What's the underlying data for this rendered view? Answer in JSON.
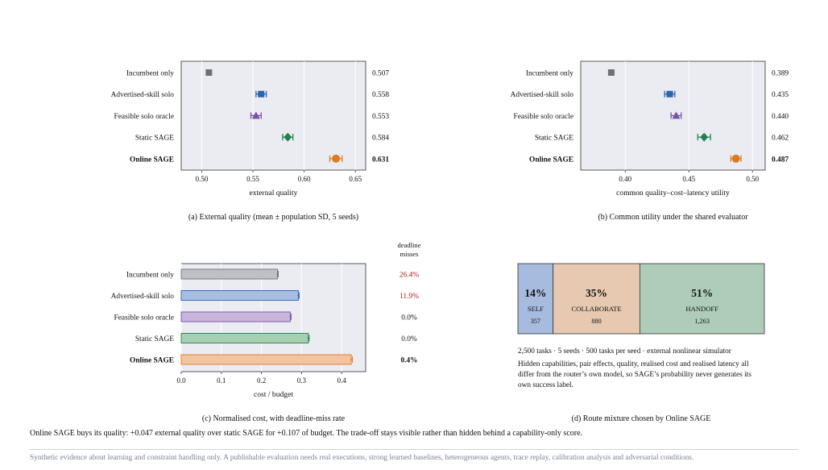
{
  "chart_data": [
    {
      "id": "a",
      "type": "dot",
      "caption": "(a) External quality (mean ± population SD, 5 seeds)",
      "xlabel": "external quality",
      "xlim": [
        0.48,
        0.66
      ],
      "xticks": [
        "0.50",
        "0.55",
        "0.60",
        "0.65"
      ],
      "xtick_values": [
        0.5,
        0.55,
        0.6,
        0.65
      ],
      "categories": [
        "Incumbent only",
        "Advertised-skill solo",
        "Feasible solo oracle",
        "Static SAGE",
        "Online SAGE"
      ],
      "values": [
        0.507,
        0.558,
        0.553,
        0.584,
        0.631
      ],
      "errors": [
        0.002,
        0.005,
        0.005,
        0.005,
        0.006
      ],
      "value_labels": [
        "0.507",
        "0.558",
        "0.553",
        "0.584",
        "0.631"
      ],
      "grid": true
    },
    {
      "id": "b",
      "type": "dot",
      "caption": "(b) Common utility under the shared evaluator",
      "xlabel": "common quality–cost–latency utility",
      "xlim": [
        0.365,
        0.51
      ],
      "xticks": [
        "0.40",
        "0.45",
        "0.50"
      ],
      "xtick_values": [
        0.4,
        0.45,
        0.5
      ],
      "categories": [
        "Incumbent only",
        "Advertised-skill solo",
        "Feasible solo oracle",
        "Static SAGE",
        "Online SAGE"
      ],
      "values": [
        0.389,
        0.435,
        0.44,
        0.462,
        0.487
      ],
      "errors": [
        0.002,
        0.004,
        0.004,
        0.005,
        0.004
      ],
      "value_labels": [
        "0.389",
        "0.435",
        "0.440",
        "0.462",
        "0.487"
      ],
      "grid": true
    },
    {
      "id": "c",
      "type": "bar",
      "orientation": "horizontal",
      "caption": "(c) Normalised cost, with deadline-miss rate",
      "xlabel": "cost / budget",
      "xlim": [
        0,
        0.46
      ],
      "xticks": [
        "0.0",
        "0.1",
        "0.2",
        "0.3",
        "0.4"
      ],
      "xtick_values": [
        0,
        0.1,
        0.2,
        0.3,
        0.4
      ],
      "categories": [
        "Incumbent only",
        "Advertised-skill solo",
        "Feasible solo oracle",
        "Static SAGE",
        "Online SAGE"
      ],
      "values": [
        0.24,
        0.292,
        0.272,
        0.317,
        0.424
      ],
      "errors": [
        0.002,
        0.002,
        0.002,
        0.002,
        0.003
      ],
      "side_header": [
        "deadline",
        "misses"
      ],
      "side_labels": [
        "26.4%",
        "11.9%",
        "0.0%",
        "0.0%",
        "0.4%"
      ],
      "side_label_colors": [
        "#b2221e",
        "#b2221e",
        "#111111",
        "#111111",
        "#111111"
      ],
      "grid": true
    },
    {
      "id": "d",
      "type": "stacked-bar",
      "caption": "(d) Route mixture chosen by Online SAGE",
      "segments": [
        {
          "pct_label": "14%",
          "name": "SELF",
          "count": "357",
          "value": 357
        },
        {
          "pct_label": "35%",
          "name": "COLLABORATE",
          "count": "880",
          "value": 880
        },
        {
          "pct_label": "51%",
          "name": "HANDOFF",
          "count": "1,263",
          "value": 1263
        }
      ]
    }
  ],
  "series_colors": [
    "#6e7078",
    "#2a63ae",
    "#7a52a0",
    "#25804a",
    "#e07a1e"
  ],
  "series_fill_colors": [
    "#bfc0c6",
    "#a7bee2",
    "#c8b5dc",
    "#a6d0b2",
    "#f2c4a2"
  ],
  "segment_colors": [
    "#a7bbdf",
    "#e7c8b0",
    "#aecdb8"
  ],
  "marker_shapes": [
    "square",
    "square",
    "triangle",
    "diamond",
    "circle"
  ],
  "bold_category": "Online SAGE",
  "notes": {
    "line1": "2,500 tasks · 5 seeds · 500 tasks per seed · external nonlinear simulator",
    "line2": "Hidden capabilities, pair effects, quality, realised cost and realised latency all differ from the router’s own model, so SAGE’s probability never generates its own success label."
  },
  "summary": "Online SAGE buys its quality: +0.047 external quality over static SAGE for +0.107 of budget. The trade-off stays visible rather than hidden behind a capability-only score.",
  "footer": "Synthetic evidence about learning and constraint handling only. A publishable evaluation needs real executions, strong learned baselines, heterogeneous agents, trace replay, calibration analysis and adversarial conditions."
}
